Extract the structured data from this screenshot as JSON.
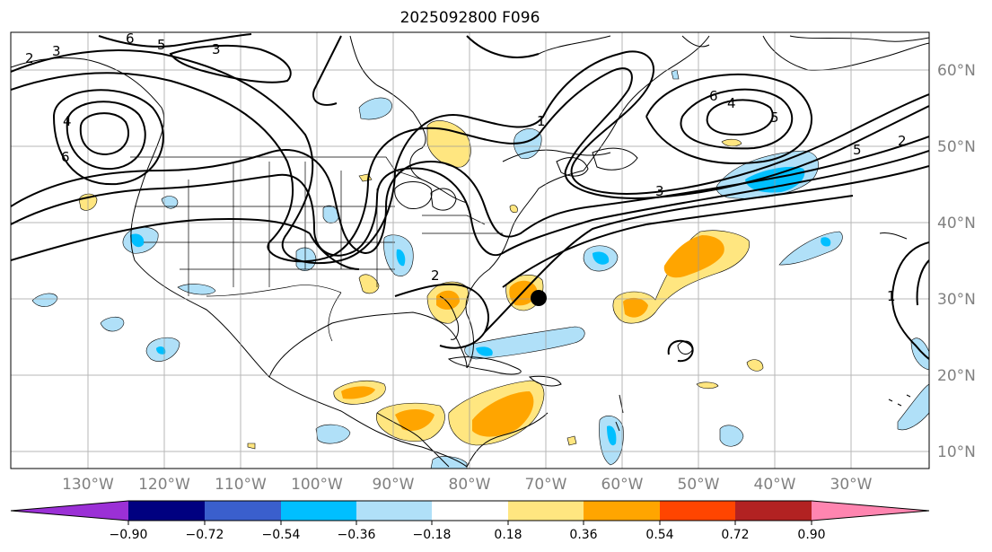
{
  "title": "2025092800 F096",
  "map": {
    "lon_labels": [
      "130°W",
      "120°W",
      "110°W",
      "100°W",
      "90°W",
      "80°W",
      "70°W",
      "60°W",
      "50°W",
      "40°W",
      "30°W"
    ],
    "lat_labels": [
      "60°N",
      "50°N",
      "40°N",
      "30°N",
      "20°N",
      "10°N"
    ],
    "contour_labels": [
      "2",
      "3",
      "6",
      "5",
      "3",
      "4",
      "1",
      "6",
      "4",
      "5",
      "6",
      "5",
      "2",
      "3",
      "2",
      "1"
    ],
    "marker": "storm-center-dot"
  },
  "colorbar": {
    "ticks": [
      "−0.90",
      "−0.72",
      "−0.54",
      "−0.36",
      "−0.18",
      "0.18",
      "0.36",
      "0.54",
      "0.72",
      "0.90"
    ],
    "colors": [
      "#9b30d6",
      "#000080",
      "#3a5fcd",
      "#00bfff",
      "#b0e0f8",
      "#ffffff",
      "#ffe680",
      "#ffa500",
      "#ff4500",
      "#b22222",
      "#ff85b0"
    ]
  }
}
